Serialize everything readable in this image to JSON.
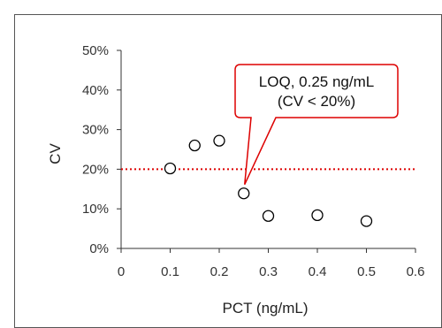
{
  "chart_data": {
    "type": "scatter",
    "xlabel": "PCT (ng/mL)",
    "ylabel": "CV",
    "xlim": [
      0,
      0.6
    ],
    "ylim": [
      0,
      50
    ],
    "xticks": [
      0,
      0.1,
      0.2,
      0.3,
      0.4,
      0.5,
      0.6
    ],
    "xtick_labels": [
      "0",
      "0.1",
      "0.2",
      "0.3",
      "0.4",
      "0.5",
      "0.6"
    ],
    "yticks": [
      0,
      10,
      20,
      30,
      40,
      50
    ],
    "ytick_labels": [
      "0%",
      "10%",
      "20%",
      "30%",
      "40%",
      "50%"
    ],
    "series": [
      {
        "points": [
          {
            "x": 0.1,
            "y": 20.2
          },
          {
            "x": 0.15,
            "y": 26.0
          },
          {
            "x": 0.2,
            "y": 27.2
          },
          {
            "x": 0.25,
            "y": 13.9
          },
          {
            "x": 0.3,
            "y": 8.2
          },
          {
            "x": 0.4,
            "y": 8.4
          },
          {
            "x": 0.5,
            "y": 6.9
          }
        ],
        "marker": "open-circle",
        "color": "#000000"
      }
    ],
    "reference_line": {
      "y": 20,
      "style": "dotted",
      "color": "#dd0000"
    },
    "annotation": {
      "lines": [
        "LOQ, 0.25 ng/mL",
        "(CV < 20%)"
      ],
      "points_to": {
        "x": 0.25,
        "y": 13.9
      },
      "border_color": "#dd0000"
    },
    "grid": false
  }
}
